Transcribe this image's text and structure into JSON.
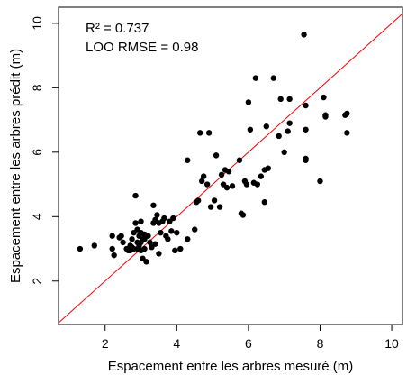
{
  "chart_data": {
    "type": "scatter",
    "xlabel": "Espacement entre les arbres mesuré (m)",
    "ylabel": "Espacement entre les arbres prédit (m)",
    "xlim": [
      0.7,
      10.3
    ],
    "ylim": [
      0.65,
      10.5
    ],
    "xticks": [
      2,
      4,
      6,
      8,
      10
    ],
    "yticks": [
      2,
      4,
      6,
      8,
      10
    ],
    "grid": false,
    "reference_line": {
      "type": "identity",
      "color": "#ff0000"
    },
    "point_color": "#000000",
    "annotations": [
      "R² = 0.737",
      "LOO RMSE = 0.98"
    ],
    "points": [
      [
        1.3,
        3.0
      ],
      [
        1.7,
        3.1
      ],
      [
        2.2,
        3.4
      ],
      [
        2.2,
        3.0
      ],
      [
        2.25,
        2.8
      ],
      [
        2.4,
        3.35
      ],
      [
        2.45,
        3.4
      ],
      [
        2.5,
        3.2
      ],
      [
        2.6,
        3.0
      ],
      [
        2.65,
        2.95
      ],
      [
        2.7,
        3.1
      ],
      [
        2.7,
        2.95
      ],
      [
        2.75,
        3.05
      ],
      [
        2.75,
        3.3
      ],
      [
        2.8,
        3.0
      ],
      [
        2.8,
        3.5
      ],
      [
        2.85,
        3.8
      ],
      [
        2.85,
        4.65
      ],
      [
        2.9,
        3.6
      ],
      [
        2.9,
        3.2
      ],
      [
        2.9,
        3.0
      ],
      [
        2.95,
        3.4
      ],
      [
        2.95,
        3.1
      ],
      [
        3.0,
        3.85
      ],
      [
        3.0,
        3.5
      ],
      [
        3.0,
        3.2
      ],
      [
        3.0,
        2.95
      ],
      [
        3.05,
        3.3
      ],
      [
        3.05,
        2.7
      ],
      [
        3.1,
        3.45
      ],
      [
        3.1,
        3.3
      ],
      [
        3.1,
        3.0
      ],
      [
        3.15,
        2.6
      ],
      [
        3.2,
        3.4
      ],
      [
        3.25,
        3.2
      ],
      [
        3.3,
        3.05
      ],
      [
        3.35,
        4.35
      ],
      [
        3.35,
        3.8
      ],
      [
        3.4,
        3.9
      ],
      [
        3.4,
        3.15
      ],
      [
        3.45,
        4.05
      ],
      [
        3.5,
        3.8
      ],
      [
        3.5,
        2.85
      ],
      [
        3.55,
        3.5
      ],
      [
        3.6,
        3.85
      ],
      [
        3.65,
        3.95
      ],
      [
        3.7,
        3.4
      ],
      [
        3.75,
        3.3
      ],
      [
        3.8,
        3.85
      ],
      [
        3.85,
        3.55
      ],
      [
        3.9,
        3.95
      ],
      [
        3.95,
        2.95
      ],
      [
        4.0,
        3.5
      ],
      [
        4.1,
        3.0
      ],
      [
        4.3,
        3.3
      ],
      [
        4.3,
        5.75
      ],
      [
        4.5,
        3.6
      ],
      [
        4.55,
        4.45
      ],
      [
        4.6,
        4.5
      ],
      [
        4.65,
        6.6
      ],
      [
        4.7,
        5.1
      ],
      [
        4.75,
        5.25
      ],
      [
        4.85,
        5.0
      ],
      [
        4.9,
        6.6
      ],
      [
        4.95,
        4.3
      ],
      [
        5.05,
        4.5
      ],
      [
        5.1,
        5.9
      ],
      [
        5.2,
        4.3
      ],
      [
        5.25,
        5.3
      ],
      [
        5.3,
        5.0
      ],
      [
        5.35,
        5.45
      ],
      [
        5.4,
        4.9
      ],
      [
        5.45,
        5.4
      ],
      [
        5.55,
        4.95
      ],
      [
        5.75,
        5.75
      ],
      [
        5.8,
        4.1
      ],
      [
        5.85,
        4.05
      ],
      [
        5.9,
        5.1
      ],
      [
        5.95,
        5.0
      ],
      [
        6.0,
        7.55
      ],
      [
        6.05,
        6.7
      ],
      [
        6.15,
        5.05
      ],
      [
        6.2,
        8.3
      ],
      [
        6.25,
        5.0
      ],
      [
        6.35,
        5.25
      ],
      [
        6.45,
        4.45
      ],
      [
        6.45,
        5.45
      ],
      [
        6.5,
        6.8
      ],
      [
        6.55,
        5.5
      ],
      [
        6.7,
        8.3
      ],
      [
        6.85,
        6.5
      ],
      [
        6.9,
        7.65
      ],
      [
        7.0,
        6.0
      ],
      [
        7.1,
        6.65
      ],
      [
        7.15,
        6.9
      ],
      [
        7.15,
        7.65
      ],
      [
        7.55,
        9.65
      ],
      [
        7.6,
        7.45
      ],
      [
        7.6,
        6.7
      ],
      [
        7.6,
        5.8
      ],
      [
        7.6,
        5.75
      ],
      [
        8.0,
        5.1
      ],
      [
        8.1,
        7.7
      ],
      [
        8.15,
        7.15
      ],
      [
        8.15,
        7.1
      ],
      [
        8.7,
        7.15
      ],
      [
        8.75,
        7.2
      ],
      [
        8.75,
        6.6
      ]
    ]
  }
}
